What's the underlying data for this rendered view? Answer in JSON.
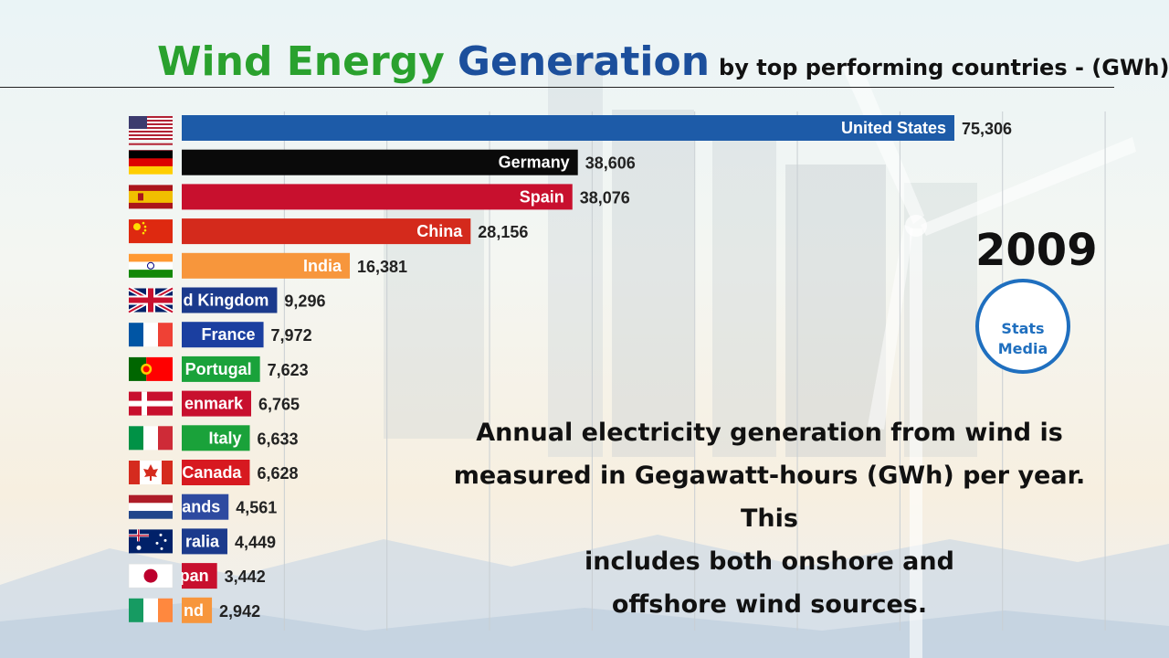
{
  "title": {
    "part1": "Wind Energy",
    "part2": "Generation",
    "part3": "by top performing countries  - (GWh)"
  },
  "year": "2009",
  "logo": {
    "line1": "Stats",
    "line2": "Media"
  },
  "note": {
    "line1": "Annual electricity generation from wind is",
    "line2": "measured in Gegawatt-hours (GWh) per year. This",
    "line3": "includes both onshore and",
    "line4": "offshore wind sources."
  },
  "chart_data": {
    "type": "bar",
    "orientation": "horizontal",
    "unit": "GWh",
    "year": "2009",
    "xlim": [
      0,
      100000
    ],
    "grid": true,
    "categories": [
      "United States",
      "Germany",
      "Spain",
      "China",
      "India",
      "d Kingdom",
      "France",
      "Portugal",
      "enmark",
      "Italy",
      "Canada",
      "ands",
      "ralia",
      "pan",
      "nd"
    ],
    "values": [
      75306,
      38606,
      38076,
      28156,
      16381,
      9296,
      7972,
      7623,
      6765,
      6633,
      6628,
      4561,
      4449,
      3442,
      2942
    ],
    "value_labels": [
      "75,306",
      "38,606",
      "38,076",
      "28,156",
      "16,381",
      "9,296",
      "7,972",
      "7,623",
      "6,765",
      "6,633",
      "6,628",
      "4,561",
      "4,449",
      "3,442",
      "2,942"
    ],
    "colors": [
      "#1d5ba8",
      "#0a0a0a",
      "#c8102e",
      "#d42a1c",
      "#f7963c",
      "#1b3a8c",
      "#1b3fa0",
      "#1aa23a",
      "#c8102e",
      "#1aa23a",
      "#d71920",
      "#2e4aa0",
      "#1b3a8c",
      "#c8102e",
      "#f7963c"
    ],
    "flags": [
      "usa-flag",
      "germany-flag",
      "spain-flag",
      "china-flag",
      "india-flag",
      "uk-flag",
      "france-flag",
      "portugal-flag",
      "denmark-flag",
      "italy-flag",
      "canada-flag",
      "netherlands-flag",
      "australia-flag",
      "japan-flag",
      "ireland-flag"
    ]
  }
}
